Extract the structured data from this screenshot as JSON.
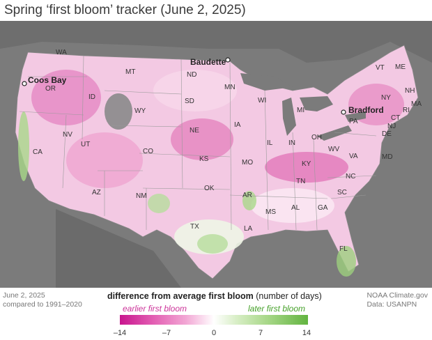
{
  "title": "Spring ‘first bloom’ tracker (June 2, 2025)",
  "legend": {
    "title_bold": "difference from average first bloom",
    "title_rest": " (number of days)",
    "earlier_label": "earlier first bloom",
    "later_label": "later first bloom",
    "ticks": [
      "–14",
      "–7",
      "0",
      "7",
      "14"
    ],
    "tick_values": [
      -14,
      -7,
      0,
      7,
      14
    ],
    "colors": {
      "earlier": "#c8158e",
      "neutral": "#ffffff",
      "later": "#62b440"
    }
  },
  "footer_left": [
    "June 2, 2025",
    "compared to 1991–2020"
  ],
  "footer_right": [
    "NOAA Climate.gov",
    "Data: USANPN"
  ],
  "states": [
    "WA",
    "OR",
    "CA",
    "ID",
    "NV",
    "MT",
    "WY",
    "UT",
    "AZ",
    "CO",
    "NM",
    "ND",
    "SD",
    "NE",
    "KS",
    "OK",
    "TX",
    "MN",
    "IA",
    "MO",
    "AR",
    "LA",
    "WI",
    "IL",
    "MI",
    "IN",
    "OH",
    "KY",
    "TN",
    "MS",
    "AL",
    "GA",
    "FL",
    "SC",
    "NC",
    "VA",
    "WV",
    "PA",
    "NY",
    "VT",
    "NH",
    "ME",
    "MA",
    "CT",
    "RI",
    "NJ",
    "DE",
    "MD"
  ],
  "cities": [
    "Coos Bay",
    "Baudette",
    "Bradford"
  ]
}
